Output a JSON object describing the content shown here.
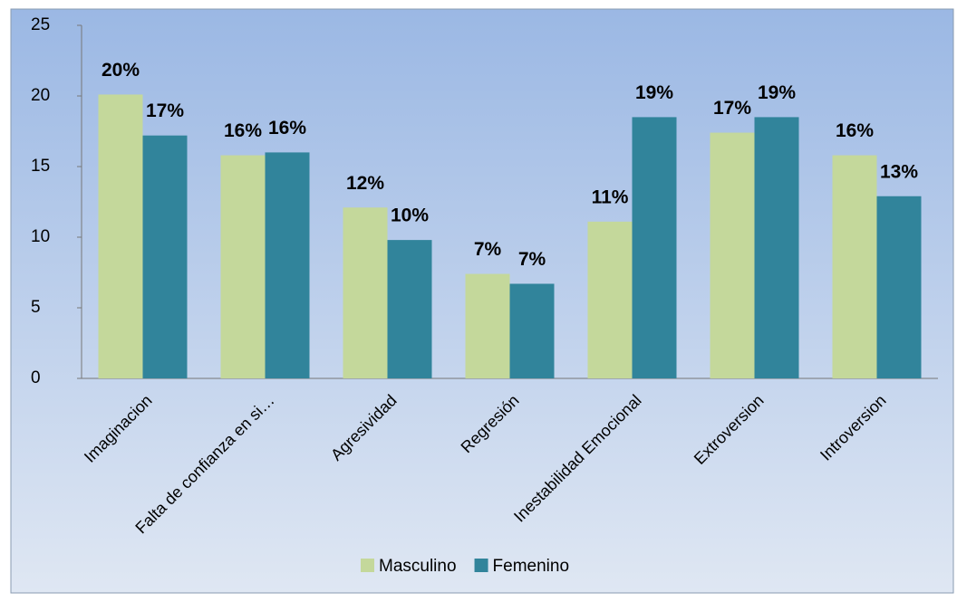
{
  "chart_data": {
    "type": "bar",
    "categories": [
      "Imaginacion",
      "Falta de confianza en si…",
      "Agresividad",
      "Regresión",
      "Inestabilidad Emocional",
      "Extroversion",
      "Introversion"
    ],
    "series": [
      {
        "name": "Masculino",
        "color": "#c4d89b",
        "values": [
          20.1,
          15.8,
          12.1,
          7.4,
          11.1,
          17.4,
          15.8
        ],
        "value_labels": [
          "20%",
          "16%",
          "12%",
          "7%",
          "11%",
          "17%",
          "16%"
        ]
      },
      {
        "name": "Femenino",
        "color": "#31849b",
        "values": [
          17.2,
          16.0,
          9.8,
          6.7,
          18.5,
          18.5,
          12.9
        ],
        "value_labels": [
          "17%",
          "16%",
          "10%",
          "7%",
          "19%",
          "19%",
          "13%"
        ]
      }
    ],
    "ylim": [
      0,
      25
    ],
    "yticks": [
      0,
      5,
      10,
      15,
      20,
      25
    ],
    "grid": false,
    "legend": "bottom"
  }
}
